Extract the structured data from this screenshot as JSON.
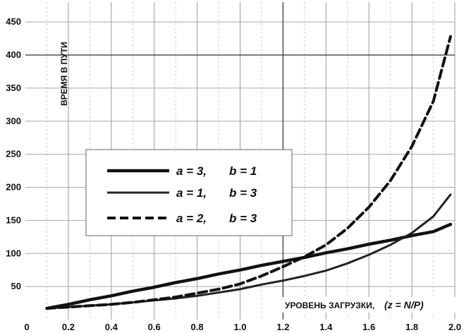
{
  "chart_data": {
    "type": "line",
    "xlabel_main": "УРОВЕНЬ ЗАГРУЗКИ,",
    "xlabel_formula": "(z = N/P)",
    "ylabel": "ВРЕМЯ В ПУТИ",
    "xlim": [
      0.0,
      2.0
    ],
    "ylim": [
      0,
      480
    ],
    "x_ticks": [
      "0",
      "0.2",
      "0.4",
      "0.6",
      "0.8",
      "1.0",
      "1.2",
      "1.4",
      "1.6",
      "1.8",
      "2.0"
    ],
    "x_tick_values": [
      0.0,
      0.2,
      0.4,
      0.6,
      0.8,
      1.0,
      1.2,
      1.4,
      1.6,
      1.8,
      2.0
    ],
    "y_ticks": [
      "50",
      "100",
      "150",
      "200",
      "250",
      "300",
      "350",
      "400",
      "450"
    ],
    "y_tick_values": [
      50,
      100,
      150,
      200,
      250,
      300,
      350,
      400,
      450
    ],
    "grid": true,
    "legend_position": "middle-left",
    "x": [
      0.1,
      0.2,
      0.3,
      0.4,
      0.5,
      0.6,
      0.7,
      0.8,
      0.9,
      1.0,
      1.1,
      1.2,
      1.3,
      1.4,
      1.5,
      1.6,
      1.7,
      1.8,
      1.9,
      1.98
    ],
    "series": [
      {
        "label_a": "a = 3,",
        "label_b": "b = 1",
        "style": "solid-thick",
        "color": "#111111",
        "values": [
          17,
          23,
          30,
          36,
          43,
          49,
          56,
          62,
          69,
          75,
          82,
          88,
          94,
          101,
          107,
          114,
          120,
          127,
          133,
          144
        ]
      },
      {
        "label_a": "a = 1,",
        "label_b": "b = 3",
        "style": "solid-medium",
        "color": "#222222",
        "values": [
          17,
          19,
          21,
          23,
          26,
          29,
          32,
          36,
          41,
          46,
          53,
          59,
          66,
          74,
          85,
          98,
          113,
          131,
          156,
          189
        ]
      },
      {
        "label_a": "a = 2,",
        "label_b": "b = 3",
        "style": "dashed",
        "color": "#111111",
        "values": [
          17,
          19,
          21,
          23,
          26,
          30,
          34,
          40,
          46,
          54,
          66,
          80,
          95,
          113,
          138,
          170,
          210,
          262,
          330,
          428
        ]
      }
    ]
  }
}
